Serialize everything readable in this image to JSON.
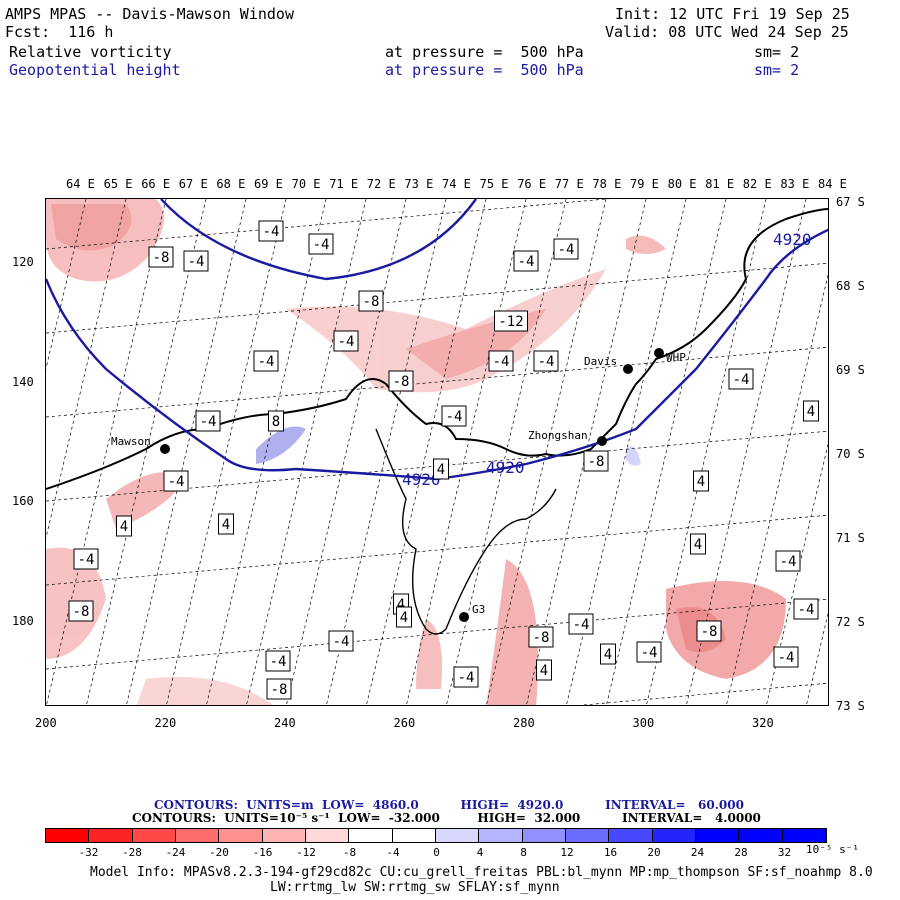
{
  "header": {
    "title": "AMPS MPAS -- Davis-Mawson Window",
    "fcst": "Fcst:  116 h",
    "init": "Init: 12 UTC Fri 19 Sep 25",
    "valid": "Valid: 08 UTC Wed 24 Sep 25",
    "field1": {
      "name": "Relative vorticity",
      "level": "at pressure =  500 hPa",
      "sm": "sm= 2"
    },
    "field2": {
      "name": "Geopotential height",
      "level": "at pressure =  500 hPa",
      "sm": "sm= 2"
    }
  },
  "axes": {
    "top_lon": [
      "64 E",
      "65 E",
      "66 E",
      "67 E",
      "68 E",
      "69 E",
      "70 E",
      "71 E",
      "72 E",
      "73 E",
      "74 E",
      "75 E",
      "76 E",
      "77 E",
      "78 E",
      "79 E",
      "80 E",
      "81 E",
      "82 E",
      "83 E",
      "84 E"
    ],
    "right_lat": [
      "67 S",
      "68 S",
      "69 S",
      "70 S",
      "71 S",
      "72 S",
      "73 S"
    ],
    "x_ticks": [
      "200",
      "220",
      "240",
      "260",
      "280",
      "300",
      "320"
    ],
    "y_ticks": [
      "120",
      "140",
      "160",
      "180"
    ]
  },
  "map": {
    "stations": [
      {
        "name": "Mawson"
      },
      {
        "name": "Davis"
      },
      {
        "name": "WHP"
      },
      {
        "name": "Zhongshan"
      },
      {
        "name": "G3"
      }
    ],
    "height_labels": [
      "4920",
      "4920",
      "4920"
    ],
    "vort_labels": [
      "-4",
      "-4",
      "-8",
      "-4",
      "-4",
      "-4",
      "-8",
      "-4",
      "-4",
      "-12",
      "-4",
      "-8",
      "-4",
      "-4",
      "8",
      "-4",
      "-4",
      "4",
      "4",
      "4",
      "-8",
      "-4",
      "4",
      "4",
      "-4",
      "-8",
      "-4",
      "-4",
      "-8",
      "4",
      "4",
      "-4",
      "-8",
      "-8",
      "-4",
      "-4",
      "4",
      "-4",
      "-4",
      "-4",
      "4",
      "4"
    ],
    "colors": {
      "neg": "#f08080",
      "pos": "#a0a0f0",
      "height_line": "#1a1aa0"
    }
  },
  "info": {
    "line1": "CONTOURS:  UNITS=m  LOW=  4860.0          HIGH=  4920.0          INTERVAL=   60.000",
    "line2": "CONTOURS:  UNITS=10⁻⁵ s⁻¹  LOW=  -32.000         HIGH=  32.000          INTERVAL=   4.0000"
  },
  "colorbar": {
    "labels": [
      "-32",
      "-28",
      "-24",
      "-20",
      "-16",
      "-12",
      "-8",
      "-4",
      "0",
      "4",
      "8",
      "12",
      "16",
      "20",
      "24",
      "28",
      "32"
    ],
    "unit": "10⁻⁵ s⁻¹",
    "colors": [
      "#ff0000",
      "#ff2424",
      "#ff4848",
      "#ff6c6c",
      "#ff9090",
      "#ffb4b4",
      "#ffd8d8",
      "#ffffff",
      "#ffffff",
      "#ffffff",
      "#d8d8ff",
      "#b4b4ff",
      "#9090ff",
      "#6c6cff",
      "#4848ff",
      "#2424ff",
      "#0000ff"
    ]
  },
  "footer": {
    "line1": "Model Info: MPASv8.2.3-194-gf29cd82c CU:cu_grell_freitas PBL:bl_mynn MP:mp_thompson SF:sf_noahmp 8.0",
    "line2": "LW:rrtmg_lw SW:rrtmg_sw SFLAY:sf_mynn"
  }
}
